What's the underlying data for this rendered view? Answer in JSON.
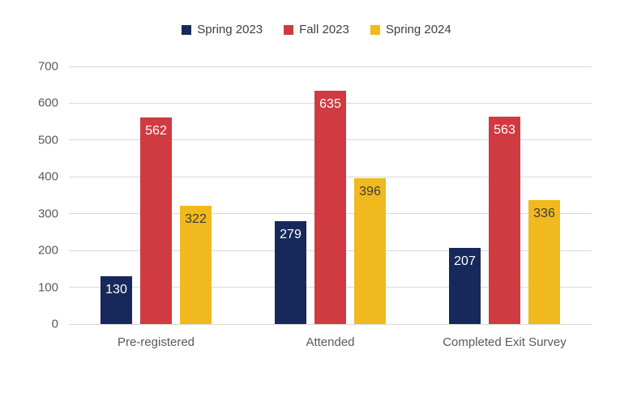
{
  "chart_data": {
    "type": "bar",
    "title": "",
    "categories": [
      "Pre-registered",
      "Attended",
      "Completed Exit Survey"
    ],
    "series": [
      {
        "name": "Spring 2023",
        "color": "#17295B",
        "label_color": "#ffffff",
        "values": [
          130,
          279,
          207
        ]
      },
      {
        "name": "Fall 2023",
        "color": "#D03B41",
        "label_color": "#ffffff",
        "values": [
          562,
          635,
          563
        ]
      },
      {
        "name": "Spring 2024",
        "color": "#F0B91E",
        "label_color": "#3C3C3C",
        "values": [
          322,
          396,
          336
        ]
      }
    ],
    "ylim": [
      0,
      700
    ],
    "yticks": [
      0,
      100,
      200,
      300,
      400,
      500,
      600,
      700
    ],
    "grid": true,
    "legend_position": "top",
    "data_labels": true
  },
  "style": {
    "grid_color": "#d9d9d9",
    "tick_text_color": "#595959",
    "legend_text_color": "#404040",
    "background": "#ffffff"
  }
}
